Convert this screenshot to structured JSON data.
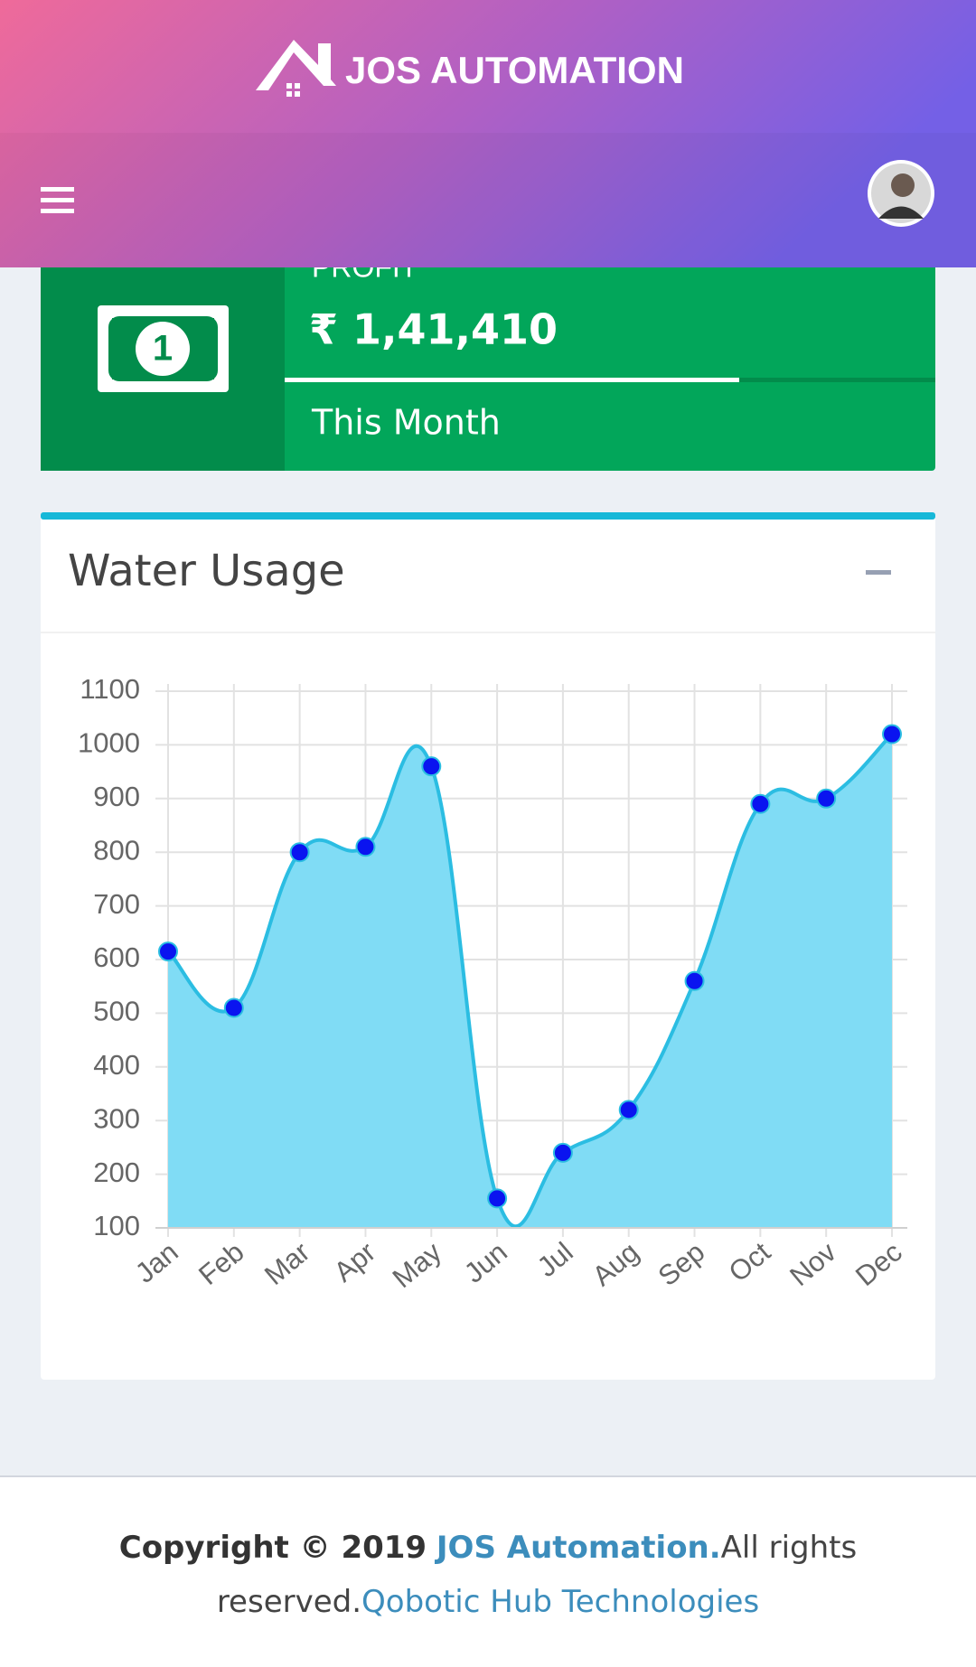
{
  "header": {
    "brand": "JOS AUTOMATION"
  },
  "profit_card": {
    "label": "PROFIT",
    "value": "₹ 1,41,410",
    "period": "This Month"
  },
  "chart_data": {
    "type": "line",
    "title": "Water Usage",
    "categories": [
      "Jan",
      "Feb",
      "Mar",
      "Apr",
      "May",
      "Jun",
      "Jul",
      "Aug",
      "Sep",
      "Oct",
      "Nov",
      "Dec"
    ],
    "values": [
      615,
      510,
      800,
      810,
      960,
      155,
      240,
      320,
      560,
      890,
      900,
      1020
    ],
    "color": "#2bbde2",
    "fill_color": "#80dcf5",
    "point_color": "#0a14f0",
    "fill": true,
    "ylim": [
      100,
      1100
    ],
    "yticks": [
      100,
      200,
      300,
      400,
      500,
      600,
      700,
      800,
      900,
      1000,
      1100
    ],
    "grid": true
  },
  "footer": {
    "copyright": "Copyright © 2019",
    "company": "JOS Automation.",
    "rights": "All rights reserved.",
    "developer": "Qobotic Hub Technologies"
  }
}
